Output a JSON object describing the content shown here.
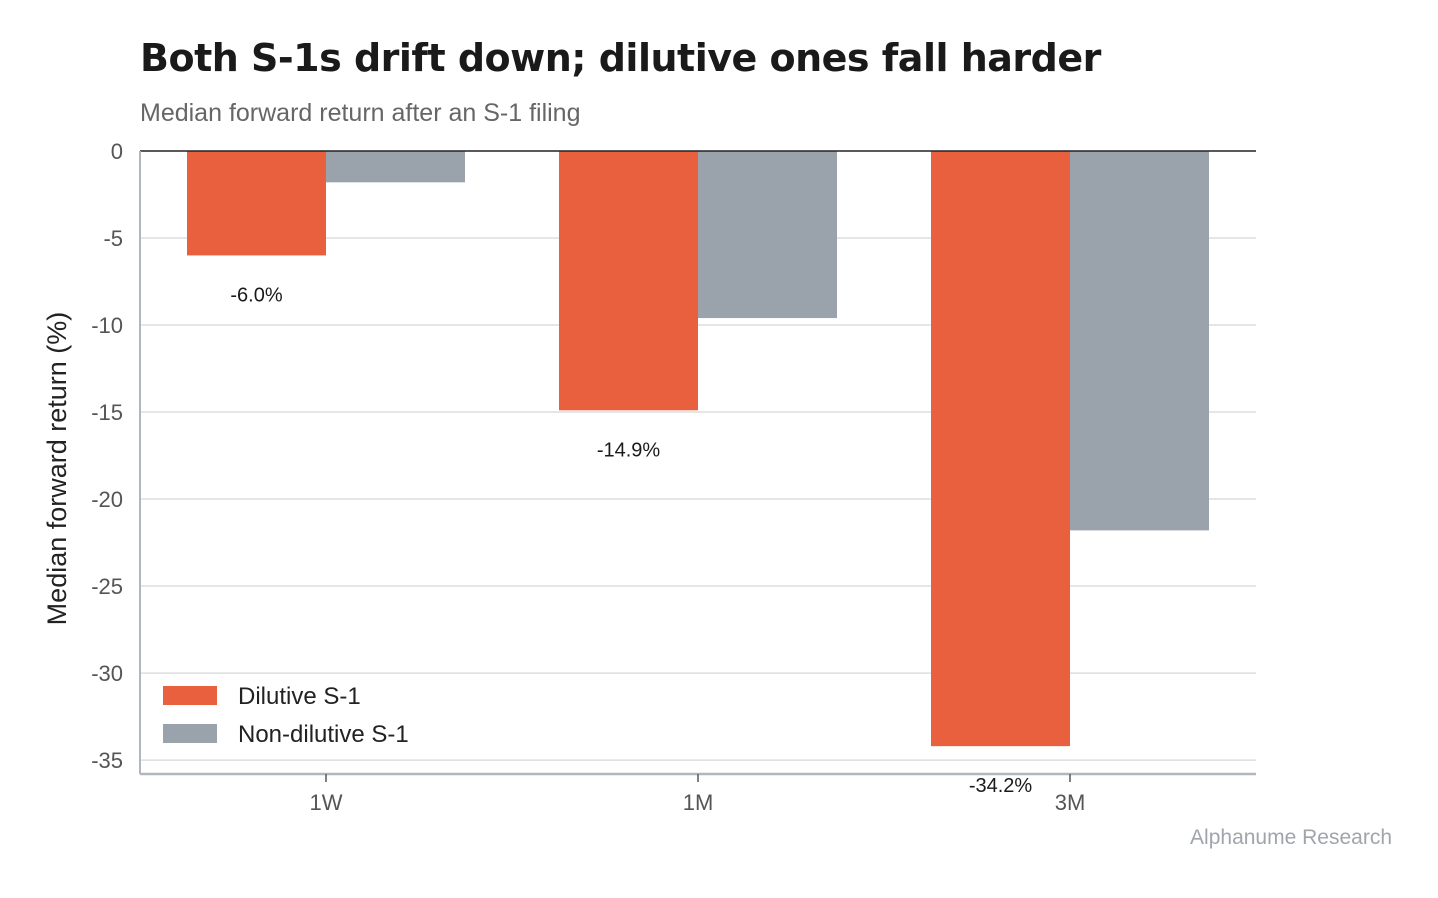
{
  "chart": {
    "title": "Both S-1s drift down; dilutive ones fall harder",
    "subtitle": "Median forward return after an S-1 filing",
    "credit": "Alphanume Research"
  },
  "colors": {
    "dilutive": "#e8603e",
    "non_dilutive": "#9aa3ab",
    "grid": "#dddddd",
    "zero_line": "#222222",
    "axis": "#b0b7be"
  },
  "chart_data": {
    "type": "bar",
    "categories": [
      "1W",
      "1M",
      "3M"
    ],
    "series": [
      {
        "name": "Dilutive S-1",
        "values": [
          -6.0,
          -14.9,
          -34.2
        ]
      },
      {
        "name": "Non-dilutive S-1",
        "values": [
          -1.8,
          -9.6,
          -21.8
        ]
      }
    ],
    "data_labels": [
      "-6.0%",
      "-14.9%",
      "-34.2%"
    ],
    "title": "Both S-1s drift down; dilutive ones fall harder",
    "subtitle": "Median forward return after an S-1 filing",
    "xlabel": "",
    "ylabel": "Median forward return (%)",
    "ylim": [
      -35.8,
      0
    ],
    "yticks": [
      0,
      -5,
      -10,
      -15,
      -20,
      -25,
      -30,
      -35
    ],
    "ytick_labels": [
      "0",
      "-5",
      "-10",
      "-15",
      "-20",
      "-25",
      "-30",
      "-35"
    ],
    "grid": true,
    "legend": "bottom-left"
  }
}
